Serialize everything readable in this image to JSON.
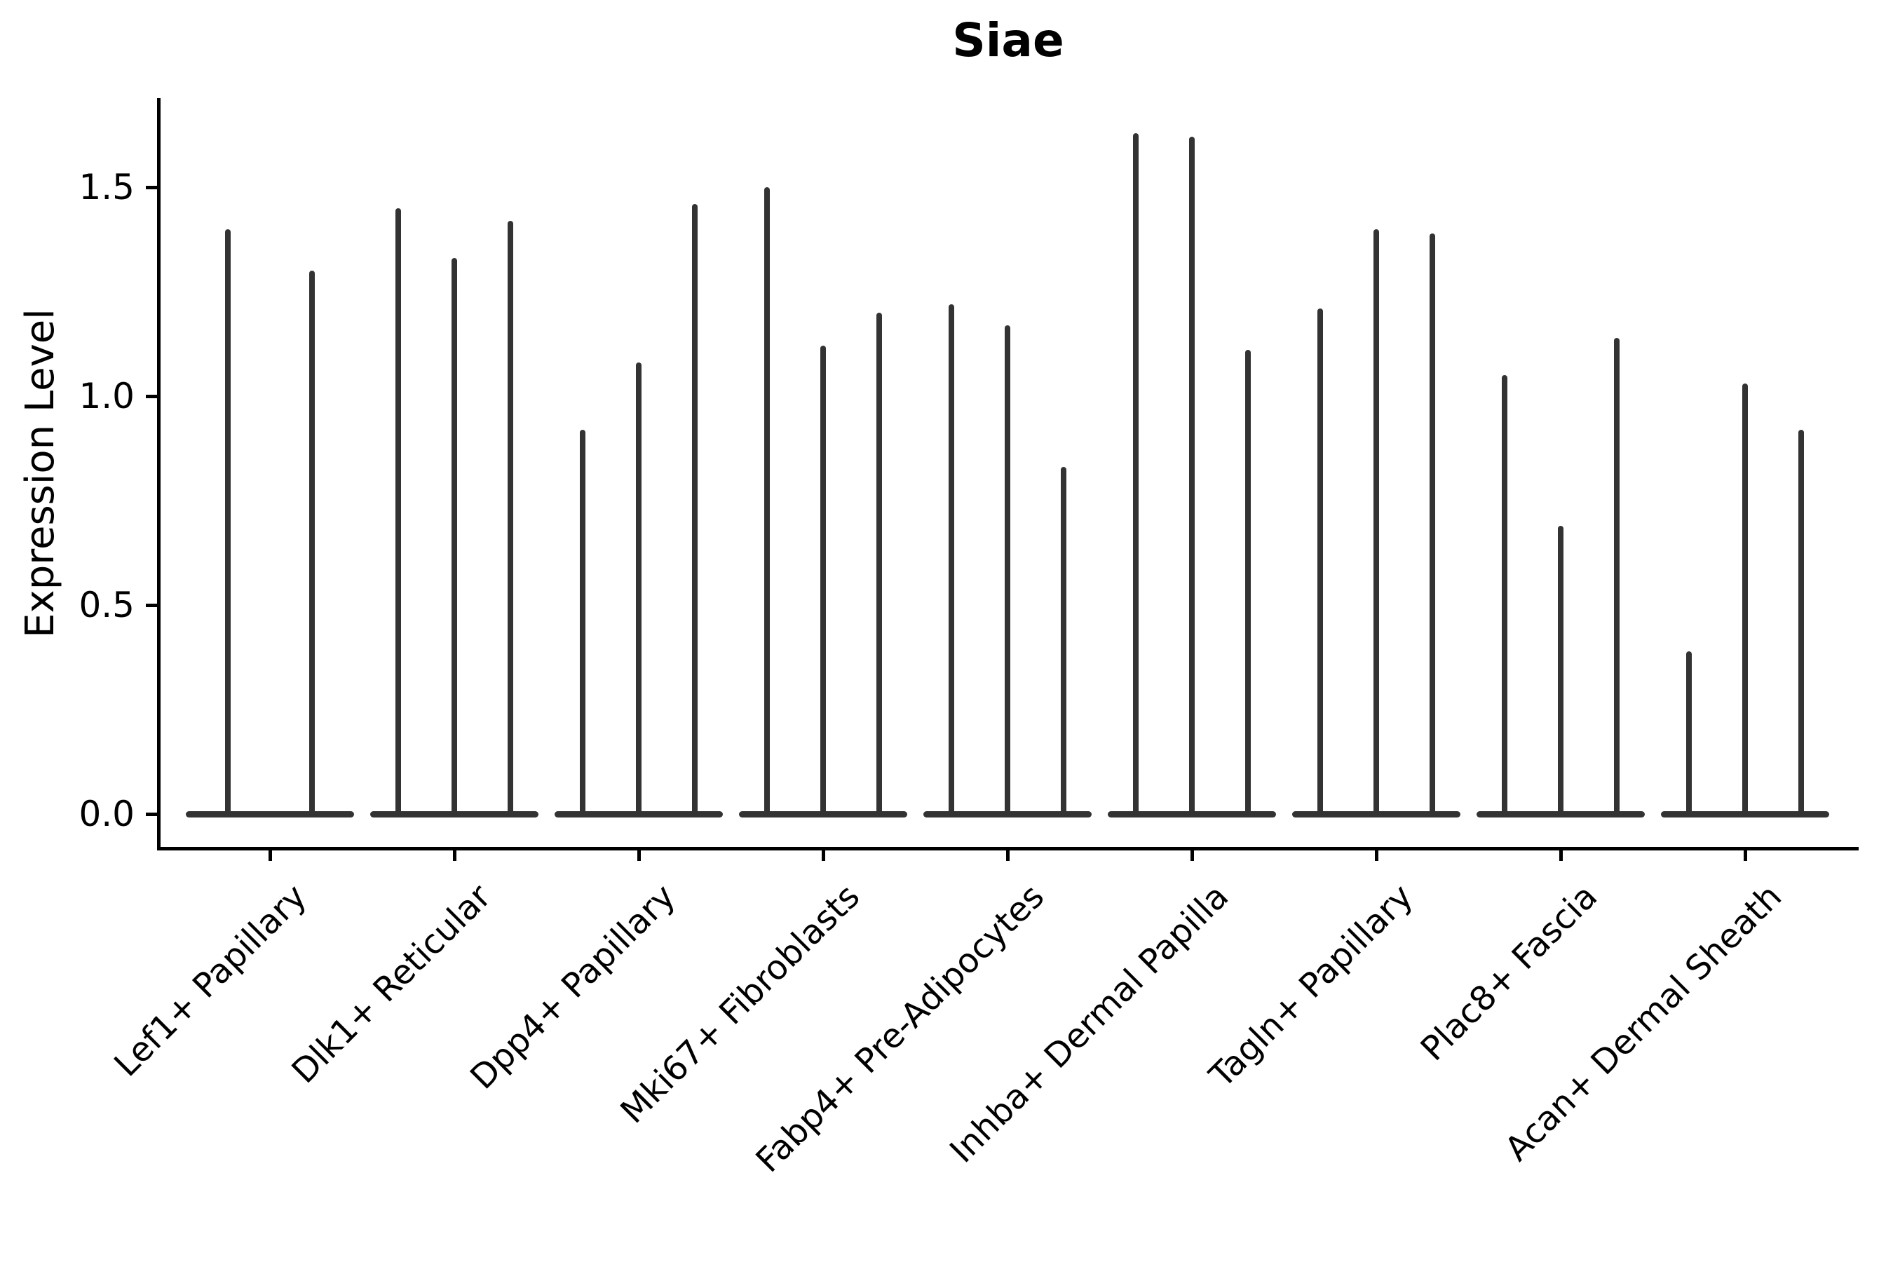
{
  "chart_data": {
    "type": "violin",
    "title": "Siae",
    "xlabel": "",
    "ylabel": "Expression Level",
    "ylim": [
      -0.08,
      1.71
    ],
    "yticks": [
      0.0,
      0.5,
      1.0,
      1.5
    ],
    "ytick_labels": [
      "0.0",
      "0.5",
      "1.0",
      "1.5"
    ],
    "grid": false,
    "legend": null,
    "violin_color": "#333333",
    "axis_color": "#000000",
    "categories": [
      "Lef1+ Papillary",
      "Dlk1+ Reticular",
      "Dpp4+ Papillary",
      "Mki67+ Fibroblasts",
      "Fabp4+ Pre-Adipocytes",
      "Inhba+ Dermal Papilla",
      "Tagln+ Papillary",
      "Plac8+ Fascia",
      "Acan+ Dermal Sheath"
    ],
    "groups": [
      {
        "category": "Lef1+ Papillary",
        "violin_max_expression": [
          1.4,
          1.3
        ]
      },
      {
        "category": "Dlk1+ Reticular",
        "violin_max_expression": [
          1.45,
          1.33,
          1.42
        ]
      },
      {
        "category": "Dpp4+ Papillary",
        "violin_max_expression": [
          0.92,
          1.08,
          1.46
        ]
      },
      {
        "category": "Mki67+ Fibroblasts",
        "violin_max_expression": [
          1.5,
          1.12,
          1.2
        ]
      },
      {
        "category": "Fabp4+ Pre-Adipocytes",
        "violin_max_expression": [
          1.22,
          1.17,
          0.83
        ]
      },
      {
        "category": "Inhba+ Dermal Papilla",
        "violin_max_expression": [
          1.63,
          1.62,
          1.11
        ]
      },
      {
        "category": "Tagln+ Papillary",
        "violin_max_expression": [
          1.21,
          1.4,
          1.39
        ]
      },
      {
        "category": "Plac8+ Fascia",
        "violin_max_expression": [
          1.05,
          0.69,
          1.14
        ]
      },
      {
        "category": "Acan+ Dermal Sheath",
        "violin_max_expression": [
          0.39,
          1.03,
          0.92
        ]
      }
    ],
    "note": "Each violin is an extremely narrow density spike rising from a flat base at expression 0; value listed is the top of each spike."
  }
}
